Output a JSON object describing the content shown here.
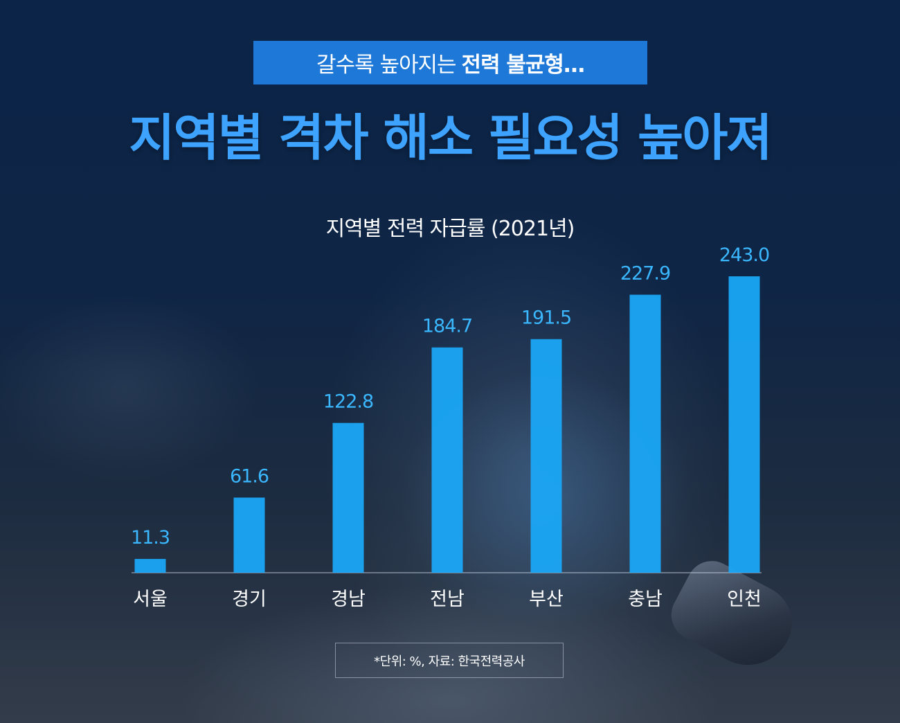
{
  "subtitle": {
    "prefix": "갈수록 높아지는",
    "bold": "전력 불균형…"
  },
  "title": "지역별 격차 해소 필요성 높아져",
  "note": "*단위: %, 자료: 한국전력공사",
  "colors": {
    "bar": "#1aa6f6",
    "value_label": "#3ab7ff",
    "axis_label": "#ffffff",
    "title": "#3ea3ff",
    "subtitle_box": "#1e78d8"
  },
  "chart_data": {
    "type": "bar",
    "title": "지역별 전력 자급률 (2021년)",
    "categories": [
      "서울",
      "경기",
      "경남",
      "전남",
      "부산",
      "충남",
      "인천"
    ],
    "values": [
      11.3,
      61.6,
      122.8,
      184.7,
      191.5,
      227.9,
      243.0
    ],
    "value_labels": [
      "11.3",
      "61.6",
      "122.8",
      "184.7",
      "191.5",
      "227.9",
      "243.0"
    ],
    "unit": "%",
    "ylim": [
      0,
      243.0
    ],
    "grid": false,
    "legend": "none"
  }
}
